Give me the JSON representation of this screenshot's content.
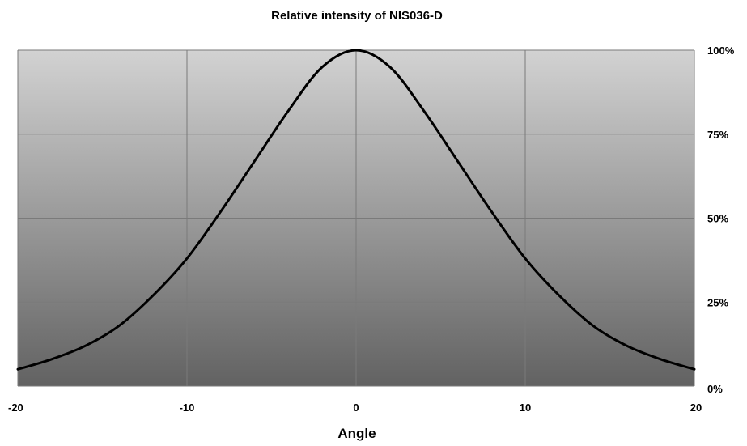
{
  "chart_data": {
    "type": "line",
    "title": "Relative intensity of NIS036-D",
    "xlabel": "Angle",
    "ylabel": "",
    "xlim": [
      -20,
      20
    ],
    "ylim": [
      0,
      100
    ],
    "x_ticks": [
      -20,
      -10,
      0,
      10,
      20
    ],
    "x_tick_labels": [
      "-20",
      "-10",
      "0",
      "10",
      "20"
    ],
    "y_ticks": [
      0,
      25,
      50,
      75,
      100
    ],
    "y_tick_labels": [
      "0%",
      "25%",
      "50%",
      "75%",
      "100%"
    ],
    "y_axis_side": "right",
    "grid": true,
    "legend": "none",
    "colors": {
      "line": "#000000",
      "grid": "#7a7a7a",
      "background_top": "#d2d2d2",
      "background_bottom": "#626262"
    },
    "series": [
      {
        "x": [
          -20,
          -18,
          -16,
          -14,
          -12,
          -10,
          -8,
          -6,
          -4,
          -2,
          0,
          2,
          4,
          6,
          8,
          10,
          12,
          14,
          16,
          18,
          20
        ],
        "values": [
          5,
          8,
          12,
          18,
          27,
          38,
          52,
          67,
          82,
          95,
          100,
          95,
          82,
          67,
          52,
          38,
          27,
          18,
          12,
          8,
          5
        ]
      }
    ]
  }
}
